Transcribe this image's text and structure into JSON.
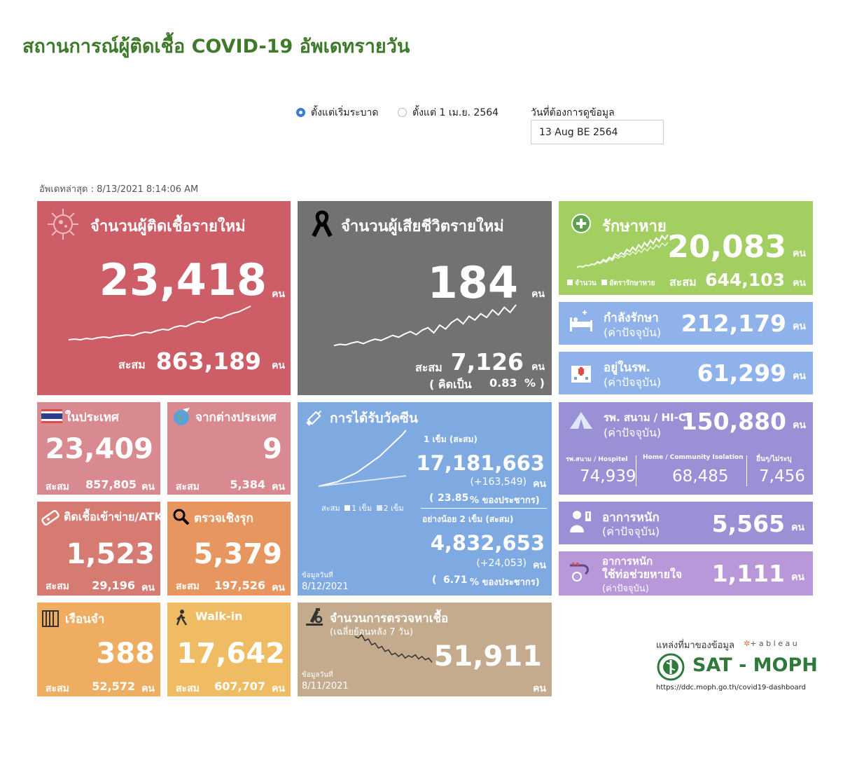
{
  "header": {
    "title": "สถานการณ์ผู้ติดเชื้อ COVID-19 อัพเดทรายวัน"
  },
  "filters": {
    "option1": "ตั้งแต่เริ่มระบาด",
    "option2": "ตั้งแต่ 1 เม.ย. 2564",
    "date_label": "วันที่ต้องการดูข้อมูล",
    "date_value": "13 Aug BE 2564"
  },
  "updated": "อัพเดทล่าสุด : 8/13/2021 8:14:06 AM",
  "unit": "คน",
  "cum_label": "สะสม",
  "new_cases": {
    "title": "จำนวนผู้ติดเชื้อรายใหม่",
    "value": "23,418",
    "cum": "863,189",
    "trend": [
      2,
      3,
      2,
      4,
      3,
      5,
      6,
      5,
      7,
      8,
      9,
      8,
      11,
      13,
      12,
      15,
      17,
      16,
      20,
      22,
      21,
      25,
      28,
      27,
      31,
      34,
      33,
      37,
      40,
      42,
      46,
      50
    ]
  },
  "deaths": {
    "title": "จำนวนผู้เสียชีวิตรายใหม่",
    "value": "184",
    "cum": "7,126",
    "pct_prefix": "( คิดเป็น",
    "pct": "0.83",
    "pct_suffix": "% )",
    "trend": [
      2,
      4,
      3,
      6,
      8,
      5,
      9,
      12,
      10,
      14,
      18,
      15,
      20,
      24,
      19,
      26,
      30,
      22,
      34,
      28,
      38,
      44,
      36,
      48,
      42,
      52,
      46,
      58,
      50,
      62,
      54,
      66
    ]
  },
  "recovered": {
    "title": "รักษาหาย",
    "value": "20,083",
    "cum": "644,103",
    "legend1": "จำนวน",
    "legend2": "อัตรารักษาหาย",
    "trend": [
      4,
      6,
      5,
      8,
      7,
      10,
      9,
      14,
      12,
      18,
      15,
      22,
      19,
      28,
      24,
      30,
      27,
      36,
      32,
      40,
      34,
      44,
      38,
      48,
      42,
      52,
      46,
      56,
      50,
      60,
      54,
      62
    ]
  },
  "treating": {
    "title": "กำลังรักษา",
    "sub": "(ค่าปัจจุบัน)",
    "value": "212,179"
  },
  "hospital": {
    "title": "อยู่ในรพ.",
    "sub": "(ค่าปัจจุบัน)",
    "value": "61,299"
  },
  "domestic": {
    "title": "ในประเทศ",
    "value": "23,409",
    "cum": "857,805"
  },
  "abroad": {
    "title": "จากต่างประเทศ",
    "value": "9",
    "cum": "5,384"
  },
  "atk": {
    "title": "ติดเชื้อเข้าข่าย/ATK",
    "value": "1,523",
    "cum": "29,196"
  },
  "proactive": {
    "title": "ตรวจเชิงรุก",
    "value": "5,379",
    "cum": "197,526"
  },
  "prison": {
    "title": "เรือนจำ",
    "value": "388",
    "cum": "52,572"
  },
  "walkin": {
    "title": "Walk-in",
    "value": "17,642",
    "cum": "607,707"
  },
  "vaccine": {
    "title": "การได้รับวัคซีน",
    "dose1_label": "1 เข็ม (สะสม)",
    "dose1_value": "17,181,663",
    "dose1_new": "(+163,549)",
    "dose1_pct_open": "(",
    "dose1_pct": "23.85",
    "dose1_pct_suffix": "% ของประชากร)",
    "dose2_label": "อย่างน้อย 2 เข็ม (สะสม)",
    "dose2_value": "4,832,653",
    "dose2_new": "(+24,053)",
    "dose2_pct_open": "(",
    "dose2_pct": "6.71",
    "dose2_pct_suffix": "% ของประชากร)",
    "legend_cum": "สะสม",
    "legend1": "1 เข็ม",
    "legend2": "2 เข็ม",
    "data_label": "ข้อมูลวันที่",
    "data_date": "8/12/2021",
    "dose1_trend": [
      0,
      1,
      2,
      3,
      4,
      5,
      7,
      9,
      11,
      13,
      15,
      18,
      21,
      24,
      27,
      30,
      33,
      37,
      41,
      45,
      49,
      53,
      57,
      62
    ],
    "dose2_trend": [
      0,
      0.5,
      1,
      1.5,
      2,
      2.5,
      3,
      3.5,
      4,
      4.5,
      5,
      5.5,
      6,
      6.5,
      7,
      7.5,
      8,
      8.5,
      9,
      9.5,
      10,
      10.5,
      11,
      11.5
    ]
  },
  "field_hospital": {
    "title": "รพ. สนาม / HI-CI",
    "sub": "(ค่าปัจจุบัน)",
    "value": "150,880",
    "c1_label": "รพ.สนาม / Hospitel",
    "c1_value": "74,939",
    "c2_label": "Home / Community Isolation",
    "c2_value": "68,485",
    "c3_label": "อื่นๆ/ไม่ระบุ",
    "c3_value": "7,456"
  },
  "severe": {
    "title": "อาการหนัก",
    "sub": "(ค่าปัจจุบัน)",
    "value": "5,565"
  },
  "ventilator": {
    "title": "อาการหนัก",
    "title2": "ใช้ท่อช่วยหายใจ",
    "sub": "(ค่าปัจจุบัน)",
    "value": "1,111"
  },
  "tests": {
    "title": "จำนวนการตรวจหาเชื้อ",
    "sub": "(เฉลี่ยย้อนหลัง 7 วัน)",
    "value": "51,911",
    "data_label": "ข้อมูลวันที่",
    "data_date": "8/11/2021",
    "trend": [
      40,
      38,
      42,
      35,
      37,
      30,
      32,
      26,
      28,
      22,
      24,
      18,
      20,
      16,
      19,
      14,
      17,
      15,
      18,
      13,
      16,
      12,
      14,
      9
    ]
  },
  "source": {
    "label": "แหล่งที่มาของข้อมูล",
    "tableau": "+ a b l e a u",
    "org": "SAT - MOPH",
    "url": "https://ddc.moph.go.th/covid19-dashboard"
  },
  "colors": {
    "red": "#cd5d67",
    "gray": "#727272",
    "green": "#a3cf62",
    "blue": "#8fb2ea",
    "pink_light": "#d98a90",
    "orange": "#e89660",
    "orange_light": "#efad62",
    "yellow": "#f0bc63",
    "vaccine": "#7fa9e1",
    "purple": "#9a90d6",
    "violet": "#b898d8",
    "tan": "#c4ab8d"
  }
}
